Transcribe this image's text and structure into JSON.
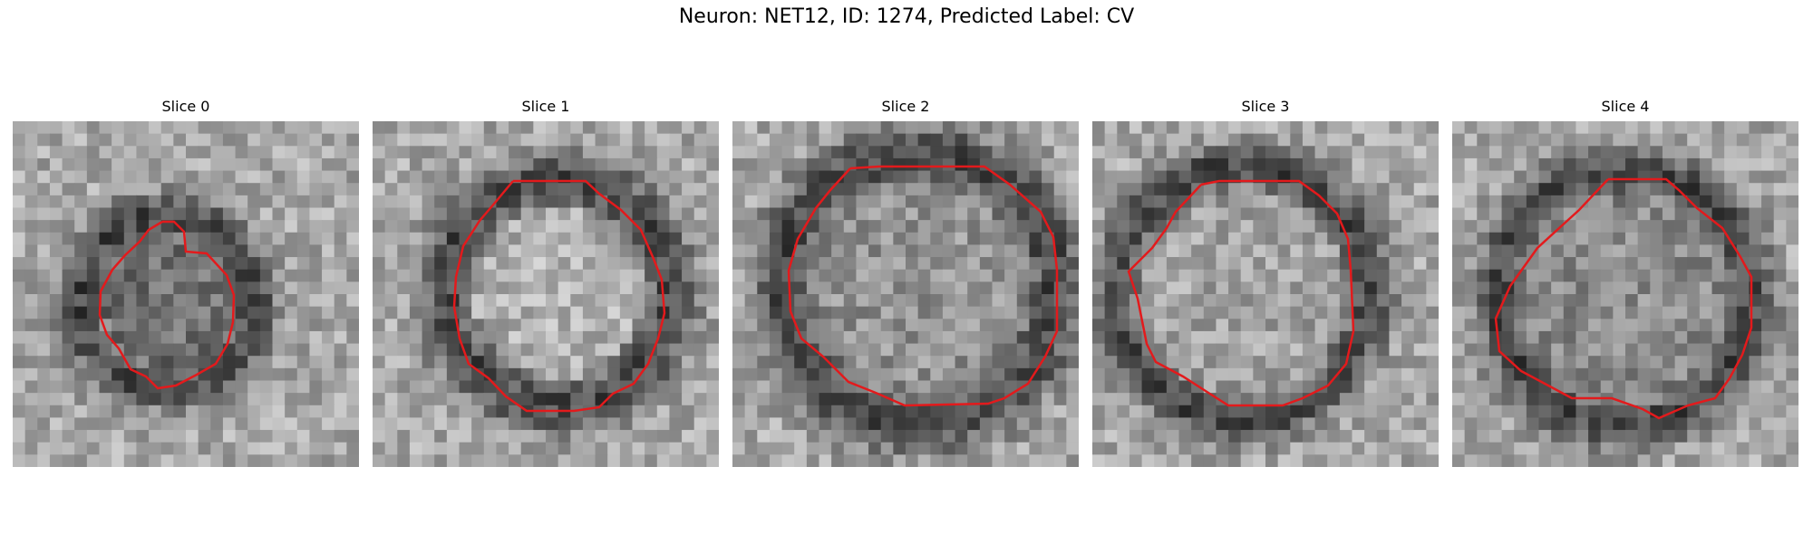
{
  "figure": {
    "title": "Neuron: NET12, ID: 1274, Predicted Label: CV"
  },
  "slices": [
    {
      "label": "Slice 0",
      "contour_color": "#e31a1c"
    },
    {
      "label": "Slice 1",
      "contour_color": "#e31a1c"
    },
    {
      "label": "Slice 2",
      "contour_color": "#e31a1c"
    },
    {
      "label": "Slice 3",
      "contour_color": "#e31a1c"
    },
    {
      "label": "Slice 4",
      "contour_color": "#e31a1c"
    }
  ]
}
